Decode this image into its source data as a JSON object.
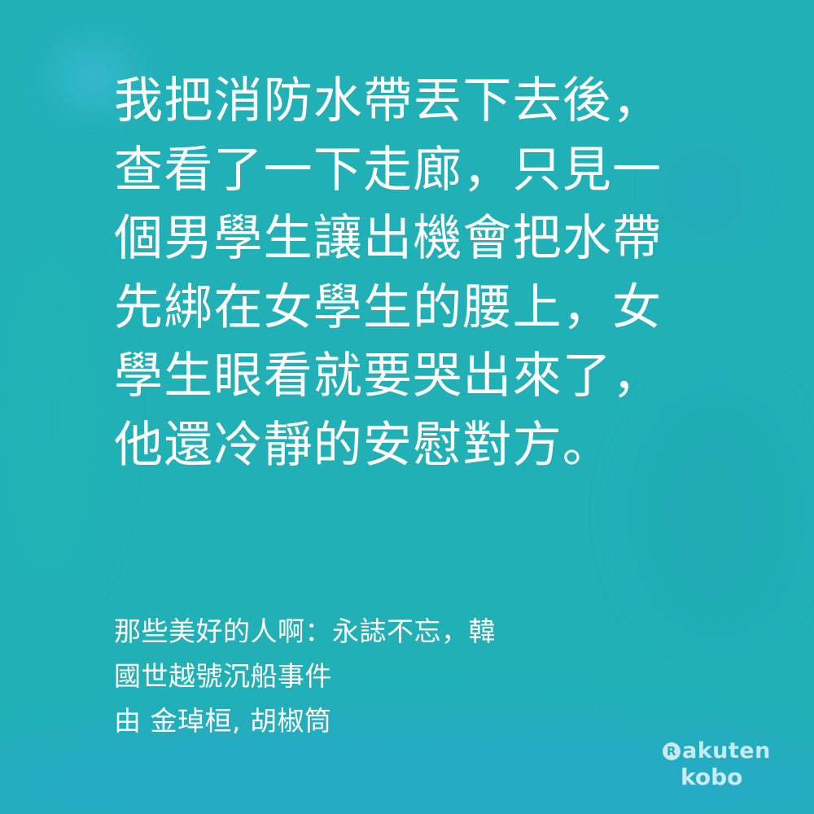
{
  "quote": {
    "text": "我把消防水帶丟下去後，查看了一下走廊，只見一個男學生讓出機會把水帶先綁在女學生的腰上，女學生眼看就要哭出來了，他還冷靜的安慰對方。"
  },
  "source": {
    "title_line1": "那些美好的人啊：永誌不忘，韓",
    "title_line2": "國世越號沉船事件",
    "authors": "由 金琸桓, 胡椒筒"
  },
  "logo": {
    "mark": "R",
    "brand": "akuten",
    "sub": "kobo"
  },
  "colors": {
    "background": "#20b0b6",
    "text": "#ffffff"
  }
}
